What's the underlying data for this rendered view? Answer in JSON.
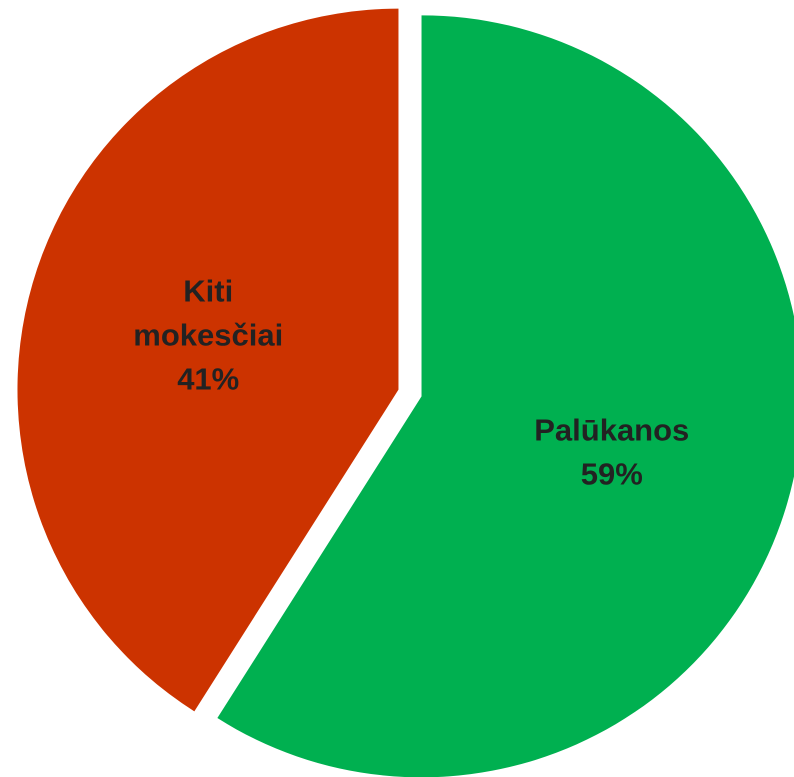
{
  "chart_data": {
    "type": "pie",
    "title": "",
    "slices": [
      {
        "label_lines": [
          "Palūkanos"
        ],
        "label": "Palūkanos",
        "value": 59,
        "value_label": "59%",
        "color": "#00b050"
      },
      {
        "label_lines": [
          "Kiti",
          "mokesčiai"
        ],
        "label": "Kiti mokesčiai",
        "value": 41,
        "value_label": "41%",
        "color": "#cc3300"
      }
    ],
    "start_angle_deg": 0,
    "direction": "clockwise",
    "exploded": true,
    "legend": "none"
  }
}
